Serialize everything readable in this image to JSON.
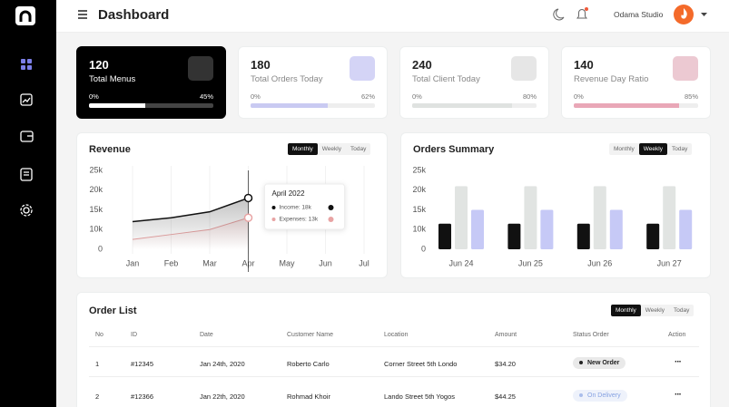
{
  "header": {
    "title": "Dashboard",
    "user": "Odama Studio"
  },
  "stats": [
    {
      "value": 120,
      "label": "Total Menus",
      "min_label": "0%",
      "progress": 45,
      "progress_label": "45%"
    },
    {
      "value": 180,
      "label": "Total Orders Today",
      "min_label": "0%",
      "progress": 62,
      "progress_label": "62%"
    },
    {
      "value": 240,
      "label": "Total Client Today",
      "min_label": "0%",
      "progress": 80,
      "progress_label": "80%"
    },
    {
      "value": 140,
      "label": "Revenue Day Ratio",
      "min_label": "0%",
      "progress": 85,
      "progress_label": "85%"
    }
  ],
  "chart_data": [
    {
      "type": "line",
      "title": "Revenue",
      "tabs": [
        "Monthly",
        "Weekly",
        "Today"
      ],
      "active_tab": 0,
      "categories": [
        "Jan",
        "Feb",
        "Mar",
        "Apr",
        "May",
        "Jun",
        "Jul"
      ],
      "ylim": [
        0,
        25000
      ],
      "yticks": [
        {
          "value": 25000,
          "label": "25k"
        },
        {
          "value": 20000,
          "label": "20k"
        },
        {
          "value": 15000,
          "label": "15k"
        },
        {
          "value": 10000,
          "label": "10k"
        },
        0
      ],
      "series": [
        {
          "color": "#111111",
          "values": [
            12000,
            13000,
            14500,
            18000,
            null,
            null,
            null
          ]
        },
        {
          "color": "#e8a3a3",
          "values": [
            5000,
            7500,
            10000,
            13000,
            null,
            null,
            null
          ]
        }
      ],
      "tooltip": {
        "title": "April 2022",
        "items": [
          "Income: 18k",
          "Expenses: 13k"
        ]
      }
    },
    {
      "type": "bar",
      "title": "Orders Summary",
      "tabs": [
        "Monthly",
        "Weekly",
        "Today"
      ],
      "active_tab": 1,
      "categories": [
        "Jun 24",
        "Jun 25",
        "Jun 26",
        "Jun 27"
      ],
      "ylim": [
        0,
        25000
      ],
      "yticks": [
        {
          "value": 25000,
          "label": "25k"
        },
        {
          "value": 20000,
          "label": "20k"
        },
        {
          "value": 15000,
          "label": "15k"
        },
        {
          "value": 10000,
          "label": "10k"
        },
        0
      ],
      "series": [
        {
          "color": "#111111",
          "values": [
            11500,
            11500,
            11500,
            11500
          ]
        },
        {
          "color": "#e1e4e2",
          "values": [
            21000,
            21000,
            21000,
            21000
          ]
        },
        {
          "color": "#c6c9f6",
          "values": [
            15000,
            15000,
            15000,
            15000
          ]
        }
      ]
    }
  ],
  "order_list": {
    "title": "Order List",
    "tabs": [
      "Monthly",
      "Weekly",
      "Today"
    ],
    "active_tab": 0,
    "columns": [
      "No",
      "ID",
      "Date",
      "Customer Name",
      "Location",
      "Amount",
      "Status Order",
      "Action"
    ],
    "rows": [
      [
        "1",
        "#12345",
        "Jan 24th, 2020",
        "Roberto Carlo",
        "Corner Street 5th Londo",
        "$34.20",
        "New Order"
      ],
      [
        "2",
        "#12366",
        "Jan 22th, 2020",
        "Rohmad Khoir",
        "Lando Street 5th Yogos",
        "$44.25",
        "On Delivery"
      ]
    ]
  }
}
